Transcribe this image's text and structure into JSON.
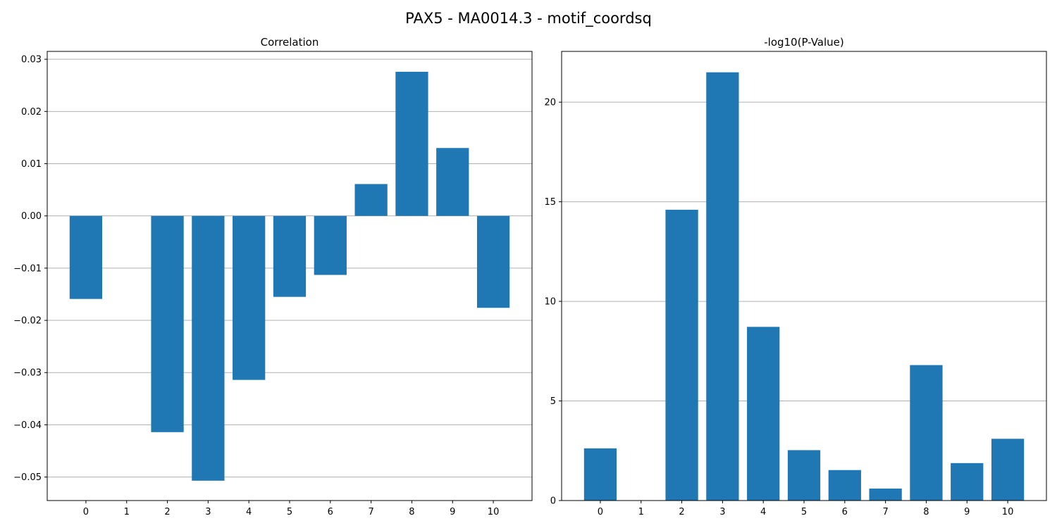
{
  "figure": {
    "title": "PAX5 - MA0014.3 - motif_coordsq"
  },
  "chart_data": [
    {
      "type": "bar",
      "title": "Correlation",
      "xlabel": "",
      "ylabel": "",
      "categories": [
        "0",
        "1",
        "2",
        "3",
        "4",
        "5",
        "6",
        "7",
        "8",
        "9",
        "10"
      ],
      "values": [
        -0.0159,
        0.0,
        -0.0414,
        -0.0507,
        -0.0314,
        -0.0155,
        -0.0113,
        0.0061,
        0.0276,
        0.013,
        -0.0176
      ],
      "ylim": [
        -0.0545,
        0.0315
      ],
      "yticks": [
        -0.05,
        -0.04,
        -0.03,
        -0.02,
        -0.01,
        0.0,
        0.01,
        0.02,
        0.03
      ],
      "ytick_labels": [
        "−0.05",
        "−0.04",
        "−0.03",
        "−0.02",
        "−0.01",
        "0.00",
        "0.01",
        "0.02",
        "0.03"
      ],
      "grid": "y",
      "bar_color": "#1f77b4"
    },
    {
      "type": "bar",
      "title": "-log10(P-Value)",
      "xlabel": "",
      "ylabel": "",
      "categories": [
        "0",
        "1",
        "2",
        "3",
        "4",
        "5",
        "6",
        "7",
        "8",
        "9",
        "10"
      ],
      "values": [
        2.62,
        0.0,
        14.6,
        21.5,
        8.72,
        2.53,
        1.53,
        0.6,
        6.8,
        1.88,
        3.1
      ],
      "ylim": [
        0,
        22.55
      ],
      "yticks": [
        0,
        5,
        10,
        15,
        20
      ],
      "ytick_labels": [
        "0",
        "5",
        "10",
        "15",
        "20"
      ],
      "grid": "y",
      "bar_color": "#1f77b4"
    }
  ]
}
